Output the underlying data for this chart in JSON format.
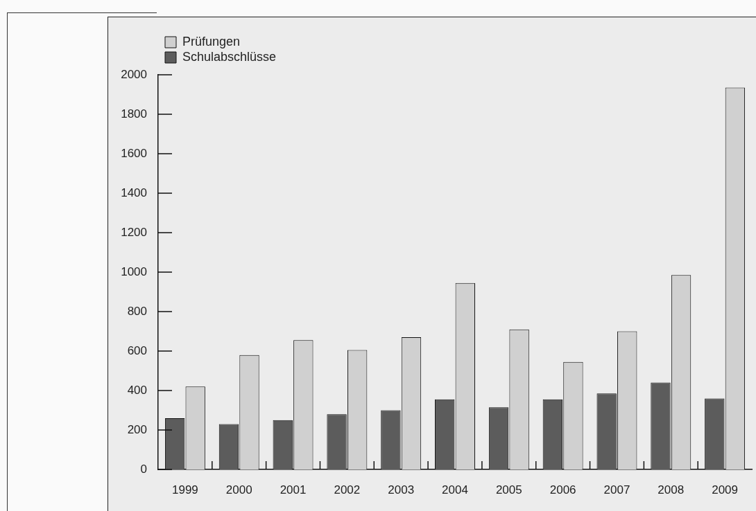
{
  "chart_data": {
    "type": "bar",
    "categories": [
      "1999",
      "2000",
      "2001",
      "2002",
      "2003",
      "2004",
      "2005",
      "2006",
      "2007",
      "2008",
      "2009"
    ],
    "series": [
      {
        "name": "Schulabschlüsse",
        "color": "#5c5c5c",
        "values": [
          260,
          230,
          250,
          280,
          300,
          355,
          315,
          355,
          385,
          440,
          360
        ]
      },
      {
        "name": "Prüfungen",
        "color": "#d0d0d0",
        "values": [
          420,
          580,
          655,
          605,
          670,
          945,
          710,
          545,
          700,
          985,
          1935
        ]
      }
    ],
    "ylim": [
      0,
      2000
    ],
    "yticks": [
      0,
      200,
      400,
      600,
      800,
      1000,
      1200,
      1400,
      1600,
      1800,
      2000
    ],
    "grid": false,
    "legend": "top left"
  }
}
